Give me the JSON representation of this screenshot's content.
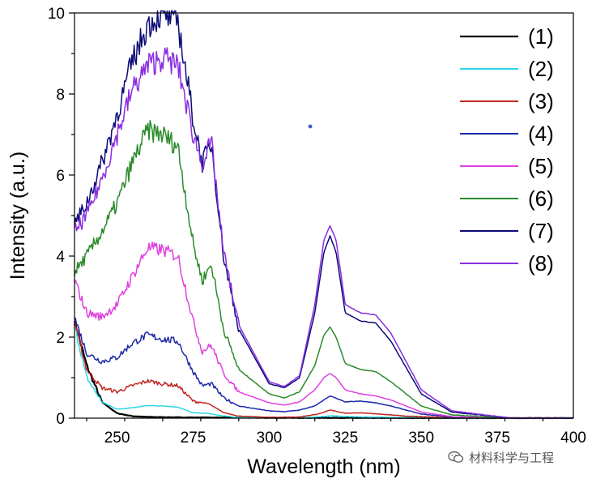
{
  "chart_data": {
    "type": "line",
    "xlabel": "Wavelength (nm)",
    "ylabel": "Intensity (a.u.)",
    "xlim": [
      236,
      400
    ],
    "ylim": [
      0,
      10
    ],
    "x_ticks": [
      250,
      275,
      300,
      325,
      350,
      375,
      400
    ],
    "y_ticks": [
      0,
      2,
      4,
      6,
      8,
      10
    ],
    "grid": false,
    "legend_position": "top-right",
    "series": [
      {
        "name": "(1)",
        "color": "#000000",
        "x": [
          236,
          240,
          245,
          250,
          255,
          260,
          270,
          300,
          400
        ],
        "y": [
          2.4,
          1.3,
          0.4,
          0.12,
          0.05,
          0.03,
          0.02,
          0.01,
          0
        ]
      },
      {
        "name": "(2)",
        "color": "#2ed6e6",
        "x": [
          236,
          240,
          245,
          250,
          255,
          260,
          265,
          270,
          275,
          280,
          285,
          290,
          300,
          310,
          316,
          320,
          325,
          330,
          340,
          350,
          360,
          400
        ],
        "y": [
          2.3,
          1.0,
          0.4,
          0.22,
          0.26,
          0.31,
          0.3,
          0.27,
          0.13,
          0.12,
          0.05,
          0.02,
          0.01,
          0.01,
          0.03,
          0.06,
          0.04,
          0.03,
          0.02,
          0.01,
          0,
          0
        ]
      },
      {
        "name": "(3)",
        "color": "#c0271f",
        "x": [
          236,
          240,
          245,
          250,
          255,
          260,
          265,
          270,
          275,
          280,
          285,
          290,
          300,
          310,
          316,
          320,
          325,
          330,
          335,
          345,
          360,
          400
        ],
        "y": [
          2.4,
          1.2,
          0.75,
          0.65,
          0.8,
          0.92,
          0.85,
          0.8,
          0.42,
          0.36,
          0.14,
          0.05,
          0.02,
          0.03,
          0.1,
          0.2,
          0.12,
          0.13,
          0.11,
          0.05,
          0.01,
          0
        ]
      },
      {
        "name": "(4)",
        "color": "#1c2aa8",
        "x": [
          236,
          240,
          245,
          250,
          255,
          260,
          265,
          270,
          275,
          278,
          281,
          285,
          290,
          300,
          305,
          310,
          315,
          320,
          325,
          330,
          335,
          340,
          350,
          360,
          380,
          400
        ],
        "y": [
          2.5,
          1.6,
          1.4,
          1.5,
          1.85,
          2.05,
          1.95,
          1.9,
          1.15,
          0.8,
          0.85,
          0.5,
          0.3,
          0.18,
          0.16,
          0.2,
          0.3,
          0.55,
          0.4,
          0.42,
          0.38,
          0.3,
          0.1,
          0.03,
          0,
          0
        ]
      },
      {
        "name": "(5)",
        "color": "#e040e0",
        "x": [
          236,
          240,
          245,
          250,
          255,
          260,
          265,
          270,
          275,
          278,
          281,
          285,
          290,
          300,
          305,
          310,
          315,
          318,
          320,
          322,
          325,
          330,
          335,
          340,
          350,
          360,
          380,
          400
        ],
        "y": [
          3.4,
          2.6,
          2.5,
          2.8,
          3.5,
          4.2,
          4.15,
          4.0,
          2.4,
          1.65,
          1.8,
          1.1,
          0.65,
          0.38,
          0.32,
          0.4,
          0.7,
          1.0,
          1.1,
          1.0,
          0.7,
          0.6,
          0.55,
          0.45,
          0.15,
          0.04,
          0,
          0
        ]
      },
      {
        "name": "(6)",
        "color": "#2a8a2a",
        "x": [
          236,
          240,
          245,
          250,
          255,
          260,
          265,
          270,
          275,
          278,
          281,
          285,
          290,
          300,
          305,
          310,
          315,
          318,
          320,
          322,
          325,
          330,
          335,
          340,
          350,
          360,
          380,
          400
        ],
        "y": [
          3.6,
          4.0,
          4.6,
          5.3,
          6.3,
          7.1,
          7.0,
          6.7,
          4.3,
          3.4,
          3.8,
          2.2,
          1.2,
          0.6,
          0.5,
          0.65,
          1.3,
          2.05,
          2.25,
          2.0,
          1.35,
          1.2,
          1.15,
          0.9,
          0.3,
          0.08,
          0,
          0
        ]
      },
      {
        "name": "(7)",
        "color": "#0b0b78",
        "x": [
          236,
          240,
          245,
          250,
          255,
          260,
          265,
          270,
          275,
          278,
          281,
          285,
          290,
          300,
          305,
          310,
          315,
          318,
          320,
          322,
          325,
          330,
          335,
          340,
          350,
          360,
          380,
          400
        ],
        "y": [
          4.8,
          5.3,
          6.3,
          7.5,
          8.8,
          9.7,
          10.0,
          9.8,
          7.4,
          6.3,
          6.8,
          4.0,
          2.2,
          0.85,
          0.75,
          1.0,
          2.6,
          4.1,
          4.5,
          4.1,
          2.6,
          2.4,
          2.35,
          1.9,
          0.6,
          0.15,
          0,
          0
        ]
      },
      {
        "name": "(8)",
        "color": "#8a2ee0",
        "x": [
          236,
          240,
          245,
          250,
          255,
          260,
          265,
          270,
          275,
          278,
          281,
          285,
          290,
          300,
          305,
          310,
          315,
          318,
          320,
          322,
          325,
          330,
          335,
          340,
          350,
          360,
          380,
          400
        ],
        "y": [
          4.6,
          5.0,
          5.9,
          7.0,
          8.1,
          8.7,
          8.9,
          8.7,
          7.0,
          6.3,
          6.8,
          4.1,
          2.3,
          0.9,
          0.78,
          1.05,
          2.8,
          4.4,
          4.75,
          4.4,
          2.8,
          2.6,
          2.55,
          2.1,
          0.7,
          0.18,
          0,
          0
        ]
      }
    ],
    "annotations": [
      {
        "type": "marker",
        "x": 313.5,
        "y": 7.2,
        "color": "#3a5ad8"
      }
    ]
  },
  "watermark": {
    "text": "材料科学与工程",
    "icon": "wechat-icon"
  }
}
